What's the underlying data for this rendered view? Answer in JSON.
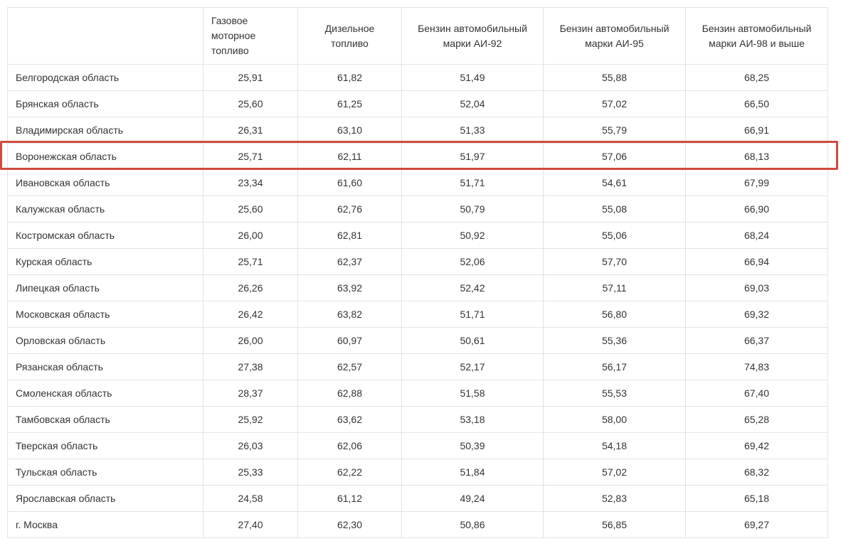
{
  "table": {
    "header": [
      "Газовое моторное топливо",
      "Дизельное топливо",
      "Бензин автомобильный марки АИ-92",
      "Бензин автомобильный марки АИ-95",
      "Бензин автомобильный марки АИ-98 и выше"
    ],
    "rows": [
      [
        "Белгородская область",
        "25,91",
        "61,82",
        "51,49",
        "55,88",
        "68,25"
      ],
      [
        "Брянская область",
        "25,60",
        "61,25",
        "52,04",
        "57,02",
        "66,50"
      ],
      [
        "Владимирская область",
        "26,31",
        "63,10",
        "51,33",
        "55,79",
        "66,91"
      ],
      [
        "Воронежская область",
        "25,71",
        "62,11",
        "51,97",
        "57,06",
        "68,13"
      ],
      [
        "Ивановская область",
        "23,34",
        "61,60",
        "51,71",
        "54,61",
        "67,99"
      ],
      [
        "Калужская область",
        "25,60",
        "62,76",
        "50,79",
        "55,08",
        "66,90"
      ],
      [
        "Костромская область",
        "26,00",
        "62,81",
        "50,92",
        "55,06",
        "68,24"
      ],
      [
        "Курская область",
        "25,71",
        "62,37",
        "52,06",
        "57,70",
        "66,94"
      ],
      [
        "Липецкая область",
        "26,26",
        "63,92",
        "52,42",
        "57,11",
        "69,03"
      ],
      [
        "Московская область",
        "26,42",
        "63,82",
        "51,71",
        "56,80",
        "69,32"
      ],
      [
        "Орловская область",
        "26,00",
        "60,97",
        "50,61",
        "55,36",
        "66,37"
      ],
      [
        "Рязанская область",
        "27,38",
        "62,57",
        "52,17",
        "56,17",
        "74,83"
      ],
      [
        "Смоленская область",
        "28,37",
        "62,88",
        "51,58",
        "55,53",
        "67,40"
      ],
      [
        "Тамбовская область",
        "25,92",
        "63,62",
        "53,18",
        "58,00",
        "65,28"
      ],
      [
        "Тверская область",
        "26,03",
        "62,06",
        "50,39",
        "54,18",
        "69,42"
      ],
      [
        "Тульская область",
        "25,33",
        "62,22",
        "51,84",
        "57,02",
        "68,32"
      ],
      [
        "Ярославская область",
        "24,58",
        "61,12",
        "49,24",
        "52,83",
        "65,18"
      ],
      [
        "г. Москва",
        "27,40",
        "62,30",
        "50,86",
        "56,85",
        "69,27"
      ]
    ]
  }
}
